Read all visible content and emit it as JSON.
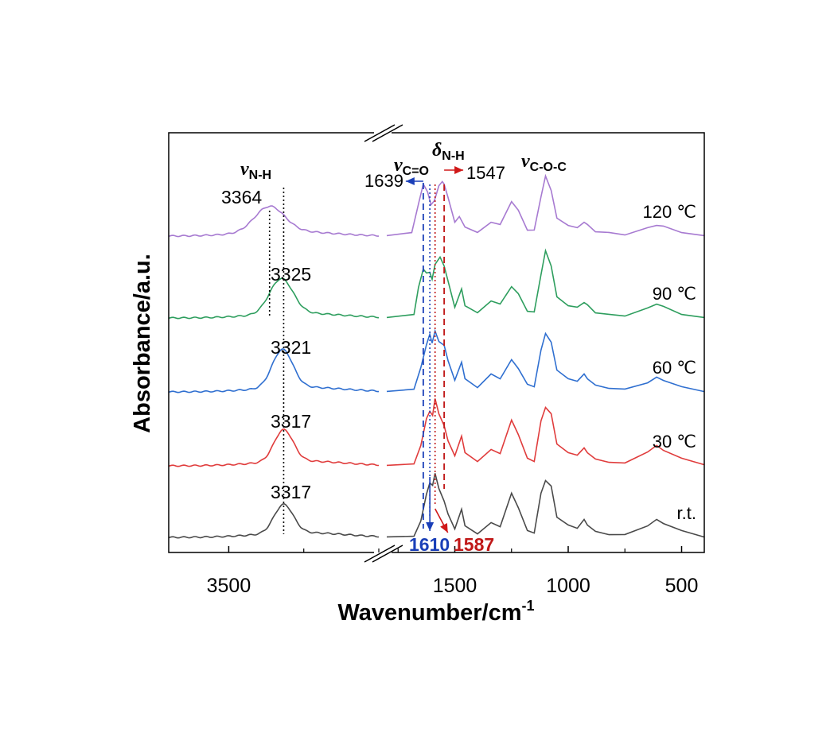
{
  "chart_data": {
    "type": "line",
    "xlabel": "Wavenumber/cm",
    "xlabel_sup": "-1",
    "ylabel": "Absorbance/a.u.",
    "x_axis_break": true,
    "x_segments": [
      {
        "range": [
          3700,
          3000
        ],
        "ticks": [
          3500
        ]
      },
      {
        "range": [
          1800,
          400
        ],
        "ticks": [
          1500,
          1000,
          500
        ]
      }
    ],
    "grid": false,
    "series": [
      {
        "name": "r.t.",
        "color": "#4a4a4a",
        "nh_peak": {
          "center": 3317,
          "height": 36,
          "width": 45
        },
        "segment2": [
          [
            1800,
            0
          ],
          [
            1680,
            2
          ],
          [
            1650,
            20
          ],
          [
            1625,
            55
          ],
          [
            1610,
            68
          ],
          [
            1598,
            66
          ],
          [
            1587,
            80
          ],
          [
            1570,
            62
          ],
          [
            1547,
            45
          ],
          [
            1530,
            30
          ],
          [
            1500,
            10
          ],
          [
            1470,
            36
          ],
          [
            1455,
            14
          ],
          [
            1400,
            5
          ],
          [
            1340,
            18
          ],
          [
            1300,
            14
          ],
          [
            1250,
            55
          ],
          [
            1220,
            38
          ],
          [
            1180,
            8
          ],
          [
            1150,
            6
          ],
          [
            1120,
            55
          ],
          [
            1100,
            72
          ],
          [
            1075,
            64
          ],
          [
            1050,
            26
          ],
          [
            1000,
            15
          ],
          [
            960,
            12
          ],
          [
            930,
            22
          ],
          [
            915,
            16
          ],
          [
            880,
            7
          ],
          [
            820,
            4
          ],
          [
            750,
            3
          ],
          [
            650,
            15
          ],
          [
            610,
            22
          ],
          [
            580,
            18
          ],
          [
            500,
            8
          ],
          [
            400,
            1
          ]
        ]
      },
      {
        "name": "30 ℃",
        "color": "#e03c3c",
        "nh_peak": {
          "center": 3317,
          "height": 40,
          "width": 45
        },
        "segment2": [
          [
            1800,
            0
          ],
          [
            1680,
            3
          ],
          [
            1650,
            25
          ],
          [
            1625,
            60
          ],
          [
            1610,
            68
          ],
          [
            1598,
            64
          ],
          [
            1587,
            84
          ],
          [
            1570,
            66
          ],
          [
            1547,
            50
          ],
          [
            1530,
            32
          ],
          [
            1500,
            12
          ],
          [
            1470,
            38
          ],
          [
            1455,
            16
          ],
          [
            1400,
            6
          ],
          [
            1340,
            20
          ],
          [
            1300,
            16
          ],
          [
            1250,
            57
          ],
          [
            1220,
            40
          ],
          [
            1180,
            9
          ],
          [
            1150,
            6
          ],
          [
            1120,
            56
          ],
          [
            1100,
            74
          ],
          [
            1075,
            65
          ],
          [
            1050,
            28
          ],
          [
            1000,
            16
          ],
          [
            960,
            14
          ],
          [
            930,
            22
          ],
          [
            915,
            17
          ],
          [
            880,
            8
          ],
          [
            820,
            5
          ],
          [
            750,
            3
          ],
          [
            650,
            18
          ],
          [
            610,
            25
          ],
          [
            580,
            20
          ],
          [
            500,
            9
          ],
          [
            400,
            2
          ]
        ]
      },
      {
        "name": "60 ℃",
        "color": "#2f6fd0",
        "nh_peak": {
          "center": 3321,
          "height": 48,
          "width": 48
        },
        "segment2": [
          [
            1800,
            0
          ],
          [
            1680,
            4
          ],
          [
            1650,
            30
          ],
          [
            1625,
            60
          ],
          [
            1610,
            72
          ],
          [
            1600,
            62
          ],
          [
            1587,
            76
          ],
          [
            1570,
            64
          ],
          [
            1547,
            58
          ],
          [
            1530,
            40
          ],
          [
            1500,
            14
          ],
          [
            1470,
            38
          ],
          [
            1455,
            16
          ],
          [
            1400,
            6
          ],
          [
            1340,
            22
          ],
          [
            1300,
            17
          ],
          [
            1250,
            40
          ],
          [
            1220,
            30
          ],
          [
            1180,
            9
          ],
          [
            1150,
            7
          ],
          [
            1120,
            52
          ],
          [
            1100,
            74
          ],
          [
            1075,
            62
          ],
          [
            1050,
            28
          ],
          [
            1000,
            16
          ],
          [
            960,
            14
          ],
          [
            930,
            22
          ],
          [
            915,
            17
          ],
          [
            880,
            8
          ],
          [
            820,
            5
          ],
          [
            750,
            3
          ],
          [
            650,
            12
          ],
          [
            610,
            18
          ],
          [
            580,
            15
          ],
          [
            500,
            6
          ],
          [
            400,
            1
          ]
        ]
      },
      {
        "name": "90 ℃",
        "color": "#2e9e5e",
        "nh_peak": {
          "center": 3325,
          "height": 44,
          "width": 55
        },
        "segment2": [
          [
            1800,
            0
          ],
          [
            1680,
            5
          ],
          [
            1660,
            38
          ],
          [
            1639,
            62
          ],
          [
            1625,
            56
          ],
          [
            1610,
            58
          ],
          [
            1600,
            48
          ],
          [
            1587,
            68
          ],
          [
            1565,
            76
          ],
          [
            1547,
            66
          ],
          [
            1530,
            46
          ],
          [
            1500,
            14
          ],
          [
            1470,
            36
          ],
          [
            1455,
            16
          ],
          [
            1400,
            6
          ],
          [
            1340,
            22
          ],
          [
            1300,
            17
          ],
          [
            1250,
            40
          ],
          [
            1220,
            30
          ],
          [
            1180,
            9
          ],
          [
            1150,
            7
          ],
          [
            1120,
            55
          ],
          [
            1100,
            84
          ],
          [
            1075,
            66
          ],
          [
            1050,
            26
          ],
          [
            1000,
            16
          ],
          [
            960,
            13
          ],
          [
            930,
            20
          ],
          [
            915,
            16
          ],
          [
            880,
            7
          ],
          [
            820,
            4
          ],
          [
            750,
            3
          ],
          [
            650,
            12
          ],
          [
            610,
            18
          ],
          [
            580,
            14
          ],
          [
            500,
            5
          ],
          [
            400,
            0
          ]
        ]
      },
      {
        "name": "120 ℃",
        "color": "#a77ad1",
        "nh_peak": {
          "center": 3364,
          "height": 32,
          "width": 70
        },
        "segment2": [
          [
            1800,
            0
          ],
          [
            1690,
            5
          ],
          [
            1660,
            40
          ],
          [
            1639,
            66
          ],
          [
            1620,
            55
          ],
          [
            1605,
            40
          ],
          [
            1590,
            44
          ],
          [
            1570,
            64
          ],
          [
            1555,
            68
          ],
          [
            1547,
            66
          ],
          [
            1530,
            48
          ],
          [
            1500,
            18
          ],
          [
            1480,
            24
          ],
          [
            1455,
            12
          ],
          [
            1400,
            4
          ],
          [
            1340,
            18
          ],
          [
            1300,
            14
          ],
          [
            1250,
            44
          ],
          [
            1220,
            32
          ],
          [
            1180,
            8
          ],
          [
            1150,
            7
          ],
          [
            1120,
            50
          ],
          [
            1100,
            75
          ],
          [
            1075,
            58
          ],
          [
            1050,
            22
          ],
          [
            1000,
            14
          ],
          [
            960,
            10
          ],
          [
            930,
            18
          ],
          [
            915,
            14
          ],
          [
            880,
            6
          ],
          [
            820,
            4
          ],
          [
            750,
            2
          ],
          [
            650,
            10
          ],
          [
            610,
            14
          ],
          [
            580,
            12
          ],
          [
            500,
            5
          ],
          [
            400,
            0
          ]
        ]
      }
    ],
    "peak_labels": [
      {
        "text": "3364",
        "series": 4
      },
      {
        "text": "3325",
        "series": 3
      },
      {
        "text": "3321",
        "series": 2
      },
      {
        "text": "3317",
        "series": 1
      },
      {
        "text": "3317",
        "series": 0
      }
    ],
    "bands": [
      {
        "symbol": "ν",
        "sub": "N-H"
      },
      {
        "symbol": "ν",
        "sub": "C=O"
      },
      {
        "symbol": "δ",
        "sub": "N-H"
      },
      {
        "symbol": "ν",
        "sub": "C-O-C"
      }
    ],
    "shift_labels": [
      {
        "text": "1639",
        "color": "#000000"
      },
      {
        "text": "1547",
        "color": "#000000"
      },
      {
        "text": "1610",
        "color": "#1a3fb8"
      },
      {
        "text": "1587",
        "color": "#c01818"
      }
    ],
    "reference_lines": [
      {
        "x": 3364,
        "style": "dotted",
        "color": "#000000"
      },
      {
        "x": 3317,
        "style": "dotted",
        "color": "#000000"
      },
      {
        "x": 1639,
        "style": "dashed",
        "color": "#1a3fb8"
      },
      {
        "x": 1610,
        "style": "dotted",
        "color": "#1a3fb8"
      },
      {
        "x": 1587,
        "style": "dotted",
        "color": "#c01818"
      },
      {
        "x": 1547,
        "style": "dashed",
        "color": "#c01818"
      }
    ]
  }
}
